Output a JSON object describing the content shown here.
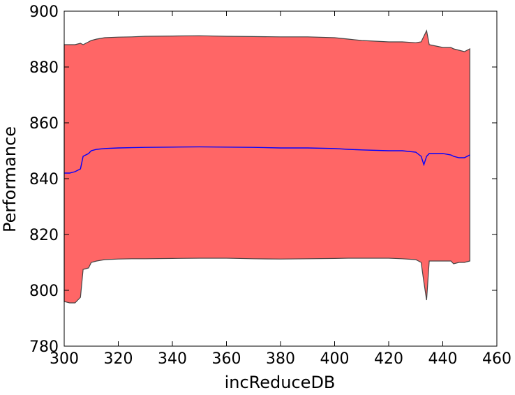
{
  "chart_data": {
    "type": "area",
    "title": "",
    "xlabel": "incReduceDB",
    "ylabel": "Performance",
    "xlim": [
      300,
      460
    ],
    "ylim": [
      780,
      900
    ],
    "xticks": [
      300,
      320,
      340,
      360,
      380,
      400,
      420,
      440,
      460
    ],
    "yticks": [
      780,
      800,
      820,
      840,
      860,
      880,
      900
    ],
    "grid": false,
    "legend": "none",
    "colors": {
      "band_fill": "#ff6666",
      "band_edge": "#444444",
      "mean_line": "#0000ff"
    },
    "x": [
      300,
      302,
      304,
      306,
      307,
      309,
      310,
      312,
      315,
      320,
      325,
      330,
      340,
      350,
      360,
      370,
      380,
      390,
      400,
      405,
      410,
      420,
      425,
      430,
      432,
      433,
      434,
      435,
      440,
      443,
      444,
      446,
      448,
      450
    ],
    "mean": [
      842.0,
      842.0,
      842.5,
      843.5,
      848.0,
      849.0,
      850.0,
      850.5,
      850.8,
      851.0,
      851.1,
      851.2,
      851.3,
      851.4,
      851.3,
      851.2,
      851.0,
      851.0,
      850.8,
      850.5,
      850.3,
      850.0,
      850.0,
      849.5,
      848.0,
      845.0,
      848.0,
      849.0,
      849.0,
      848.5,
      848.0,
      847.5,
      847.5,
      848.5
    ],
    "upper": [
      888.0,
      888.0,
      888.0,
      888.5,
      888.0,
      889.0,
      889.5,
      890.0,
      890.5,
      890.7,
      890.8,
      891.0,
      891.1,
      891.2,
      891.0,
      890.9,
      890.8,
      890.8,
      890.5,
      890.0,
      889.5,
      889.0,
      889.0,
      888.7,
      889.0,
      891.0,
      893.0,
      888.0,
      887.0,
      887.0,
      886.5,
      886.0,
      885.5,
      886.5
    ],
    "lower": [
      796.0,
      795.5,
      795.5,
      797.5,
      807.5,
      808.0,
      810.0,
      810.5,
      811.0,
      811.2,
      811.3,
      811.3,
      811.4,
      811.5,
      811.5,
      811.3,
      811.2,
      811.3,
      811.4,
      811.5,
      811.5,
      811.5,
      811.3,
      811.0,
      810.0,
      803.0,
      796.5,
      810.5,
      810.5,
      810.5,
      809.5,
      810.0,
      810.0,
      810.5
    ]
  }
}
